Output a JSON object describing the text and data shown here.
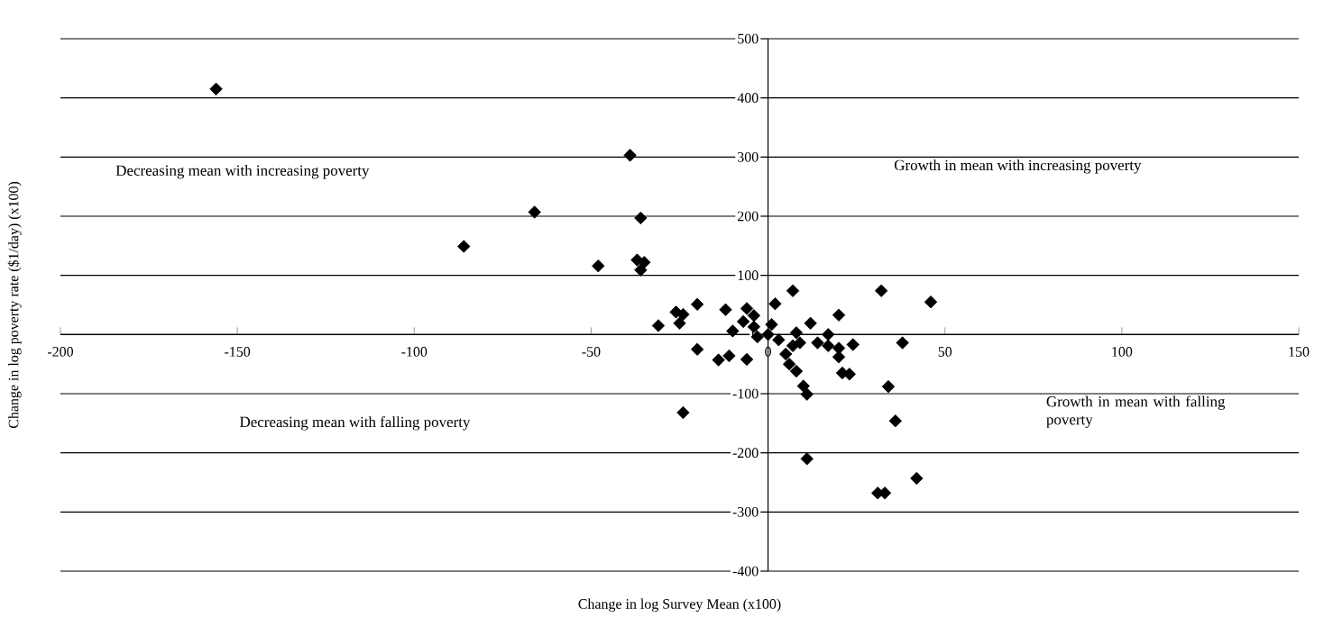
{
  "chart_data": {
    "type": "scatter",
    "xlabel": "Change in log Survey Mean (x100)",
    "ylabel": "Change in log poverty rate ($1/day) (x100)",
    "annotations": [
      "Decreasing mean with increasing poverty",
      "Growth in mean with increasing poverty",
      "Growth in mean with falling poverty",
      "Decreasing mean with falling poverty"
    ],
    "x": [
      -156,
      -39,
      -66,
      -86,
      -48,
      -36,
      -37,
      -35,
      -36,
      7,
      32,
      46,
      -20,
      -26,
      -24,
      -25,
      -31,
      -12,
      -6,
      -4,
      2,
      -7,
      -10,
      20,
      12,
      17,
      1,
      -3,
      0,
      3,
      8,
      9,
      7,
      14,
      17,
      20,
      24,
      38,
      -20,
      -14,
      -11,
      -6,
      20,
      5,
      6,
      8,
      21,
      23,
      10,
      11,
      34,
      -24,
      36,
      11,
      42,
      31,
      33,
      -4
    ],
    "values": [
      415,
      303,
      207,
      149,
      116,
      197,
      126,
      122,
      109,
      74,
      74,
      55,
      51,
      38,
      34,
      19,
      15,
      42,
      44,
      32,
      52,
      22,
      6,
      33,
      19,
      0,
      17,
      -4,
      0,
      -9,
      3,
      -14,
      -19,
      -14,
      -19,
      -23,
      -17,
      -14,
      -25,
      -43,
      -36,
      -42,
      -38,
      -33,
      -50,
      -62,
      -65,
      -67,
      -87,
      -101,
      -88,
      -132,
      -146,
      -210,
      -243,
      -268,
      -268,
      13
    ],
    "color": "#000000",
    "marker": "diamond",
    "xlim": [
      -200,
      150
    ],
    "xticks": [
      -200,
      -150,
      -100,
      -50,
      0,
      50,
      100,
      150
    ],
    "ylim": [
      -400,
      500
    ],
    "yticks": [
      -400,
      -300,
      -200,
      -100,
      0,
      100,
      200,
      300,
      400,
      500
    ],
    "grid": "y"
  }
}
